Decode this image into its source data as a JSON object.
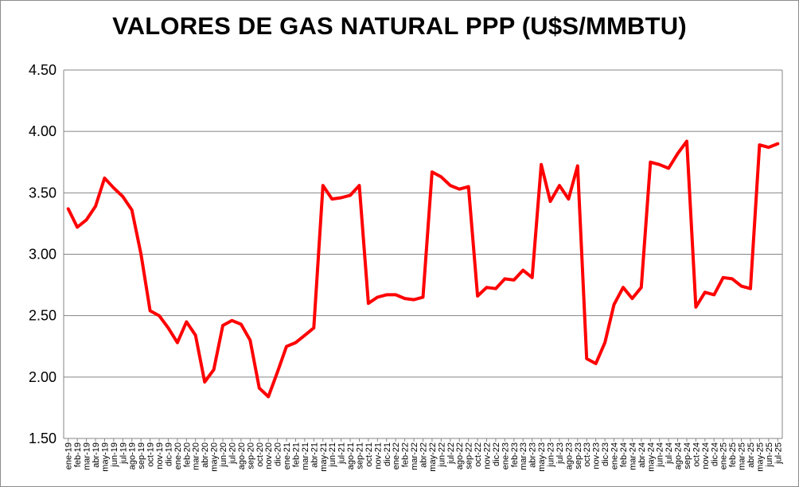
{
  "chart_data": {
    "type": "line",
    "title": "VALORES DE GAS NATURAL PPP (U$S/MMBTU)",
    "xlabel": "",
    "ylabel": "",
    "ylim": [
      1.5,
      4.5
    ],
    "yticks": [
      "1.50",
      "2.00",
      "2.50",
      "3.00",
      "3.50",
      "4.00",
      "4.50"
    ],
    "ytick_values": [
      1.5,
      2.0,
      2.5,
      3.0,
      3.5,
      4.0,
      4.5
    ],
    "grid": true,
    "legend": "none",
    "line_color": "#ff0000",
    "grid_color": "#858585",
    "categories": [
      "ene-19",
      "feb-19",
      "mar-19",
      "abr-19",
      "may-19",
      "jun-19",
      "jul-19",
      "ago-19",
      "sep-19",
      "oct-19",
      "nov-19",
      "dic-19",
      "ene-20",
      "feb-20",
      "mar-20",
      "abr-20",
      "may-20",
      "jun-20",
      "jul-20",
      "ago-20",
      "sep-20",
      "oct-20",
      "nov-20",
      "dic-20",
      "ene-21",
      "feb-21",
      "mar-21",
      "abr-21",
      "may-21",
      "jun-21",
      "jul-21",
      "ago-21",
      "sep-21",
      "oct-21",
      "nov-21",
      "dic-21",
      "ene-22",
      "feb-22",
      "mar-22",
      "abr-22",
      "may-22",
      "jun-22",
      "jul-22",
      "ago-22",
      "sep-22",
      "oct-22",
      "nov-22",
      "dic-22",
      "ene-23",
      "feb-23",
      "mar-23",
      "abr-23",
      "may-23",
      "jun-23",
      "jul-23",
      "ago-23",
      "sep-23",
      "oct-23",
      "nov-23",
      "dic-23",
      "ene-24",
      "feb-24",
      "mar-24",
      "abr-24",
      "may-24",
      "jun-24",
      "jul-24",
      "ago-24",
      "sep-24",
      "oct-24",
      "nov-24",
      "dic-24",
      "ene-25",
      "feb-25",
      "mar-25",
      "abr-25",
      "may-25",
      "jun-25",
      "jul-25"
    ],
    "series": [
      {
        "name": "",
        "values": [
          3.37,
          3.22,
          3.28,
          3.39,
          3.62,
          3.54,
          3.47,
          3.36,
          3.0,
          2.54,
          2.5,
          2.4,
          2.28,
          2.45,
          2.34,
          1.96,
          2.06,
          2.42,
          2.46,
          2.43,
          2.3,
          1.91,
          1.84,
          2.04,
          2.25,
          2.28,
          2.34,
          2.4,
          3.56,
          3.45,
          3.46,
          3.48,
          3.56,
          2.6,
          2.65,
          2.67,
          2.67,
          2.64,
          2.63,
          2.65,
          3.67,
          3.63,
          3.56,
          3.53,
          3.55,
          2.66,
          2.73,
          2.72,
          2.8,
          2.79,
          2.87,
          2.81,
          3.73,
          3.43,
          3.56,
          3.45,
          3.72,
          2.15,
          2.11,
          2.28,
          2.59,
          2.73,
          2.64,
          2.73,
          3.75,
          3.73,
          3.7,
          3.82,
          3.92,
          2.57,
          2.69,
          2.67,
          2.81,
          2.8,
          2.74,
          2.72,
          3.89,
          3.87,
          3.9
        ]
      }
    ]
  }
}
